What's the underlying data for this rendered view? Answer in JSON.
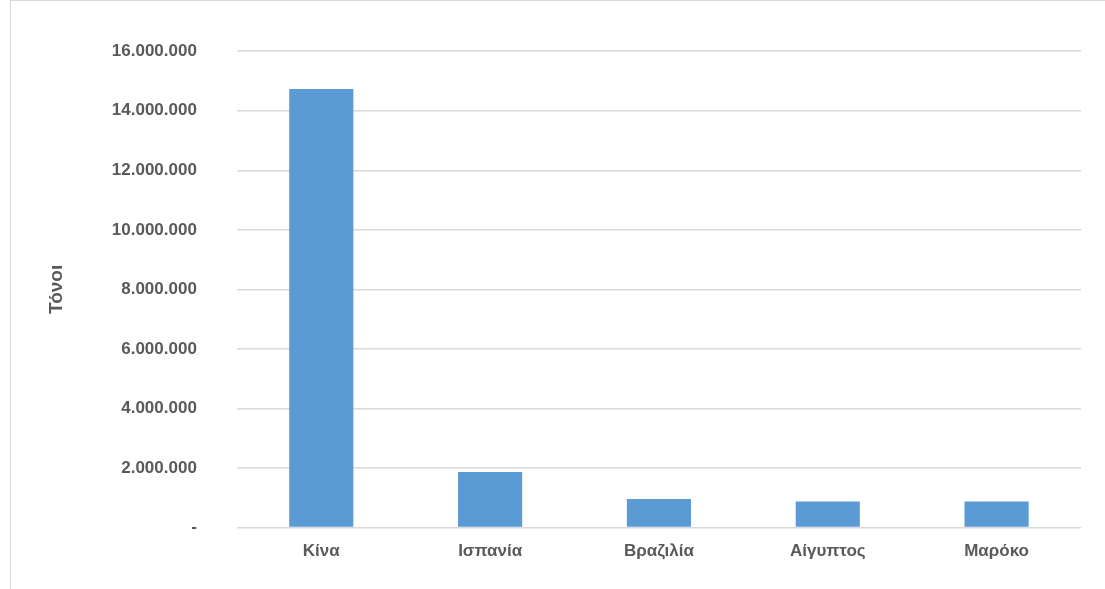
{
  "chart_data": {
    "type": "bar",
    "ylabel": "Τόνοι",
    "categories": [
      "Κίνα",
      "Ισπανία",
      "Βραζιλία",
      "Αίγυπτος",
      "Μαρόκο"
    ],
    "values": [
      14730000,
      1870000,
      960000,
      880000,
      880000
    ],
    "color": "#5b9bd5",
    "ylim": [
      0,
      16000000
    ],
    "yticks": [
      {
        "value": 0,
        "label": "-"
      },
      {
        "value": 2000000,
        "label": "2.000.000"
      },
      {
        "value": 4000000,
        "label": "4.000.000"
      },
      {
        "value": 6000000,
        "label": "6.000.000"
      },
      {
        "value": 8000000,
        "label": "8.000.000"
      },
      {
        "value": 10000000,
        "label": "10.000.000"
      },
      {
        "value": 12000000,
        "label": "12.000.000"
      },
      {
        "value": 14000000,
        "label": "14.000.000"
      },
      {
        "value": 16000000,
        "label": "16.000.000"
      }
    ],
    "grid": "y",
    "legend": false
  }
}
